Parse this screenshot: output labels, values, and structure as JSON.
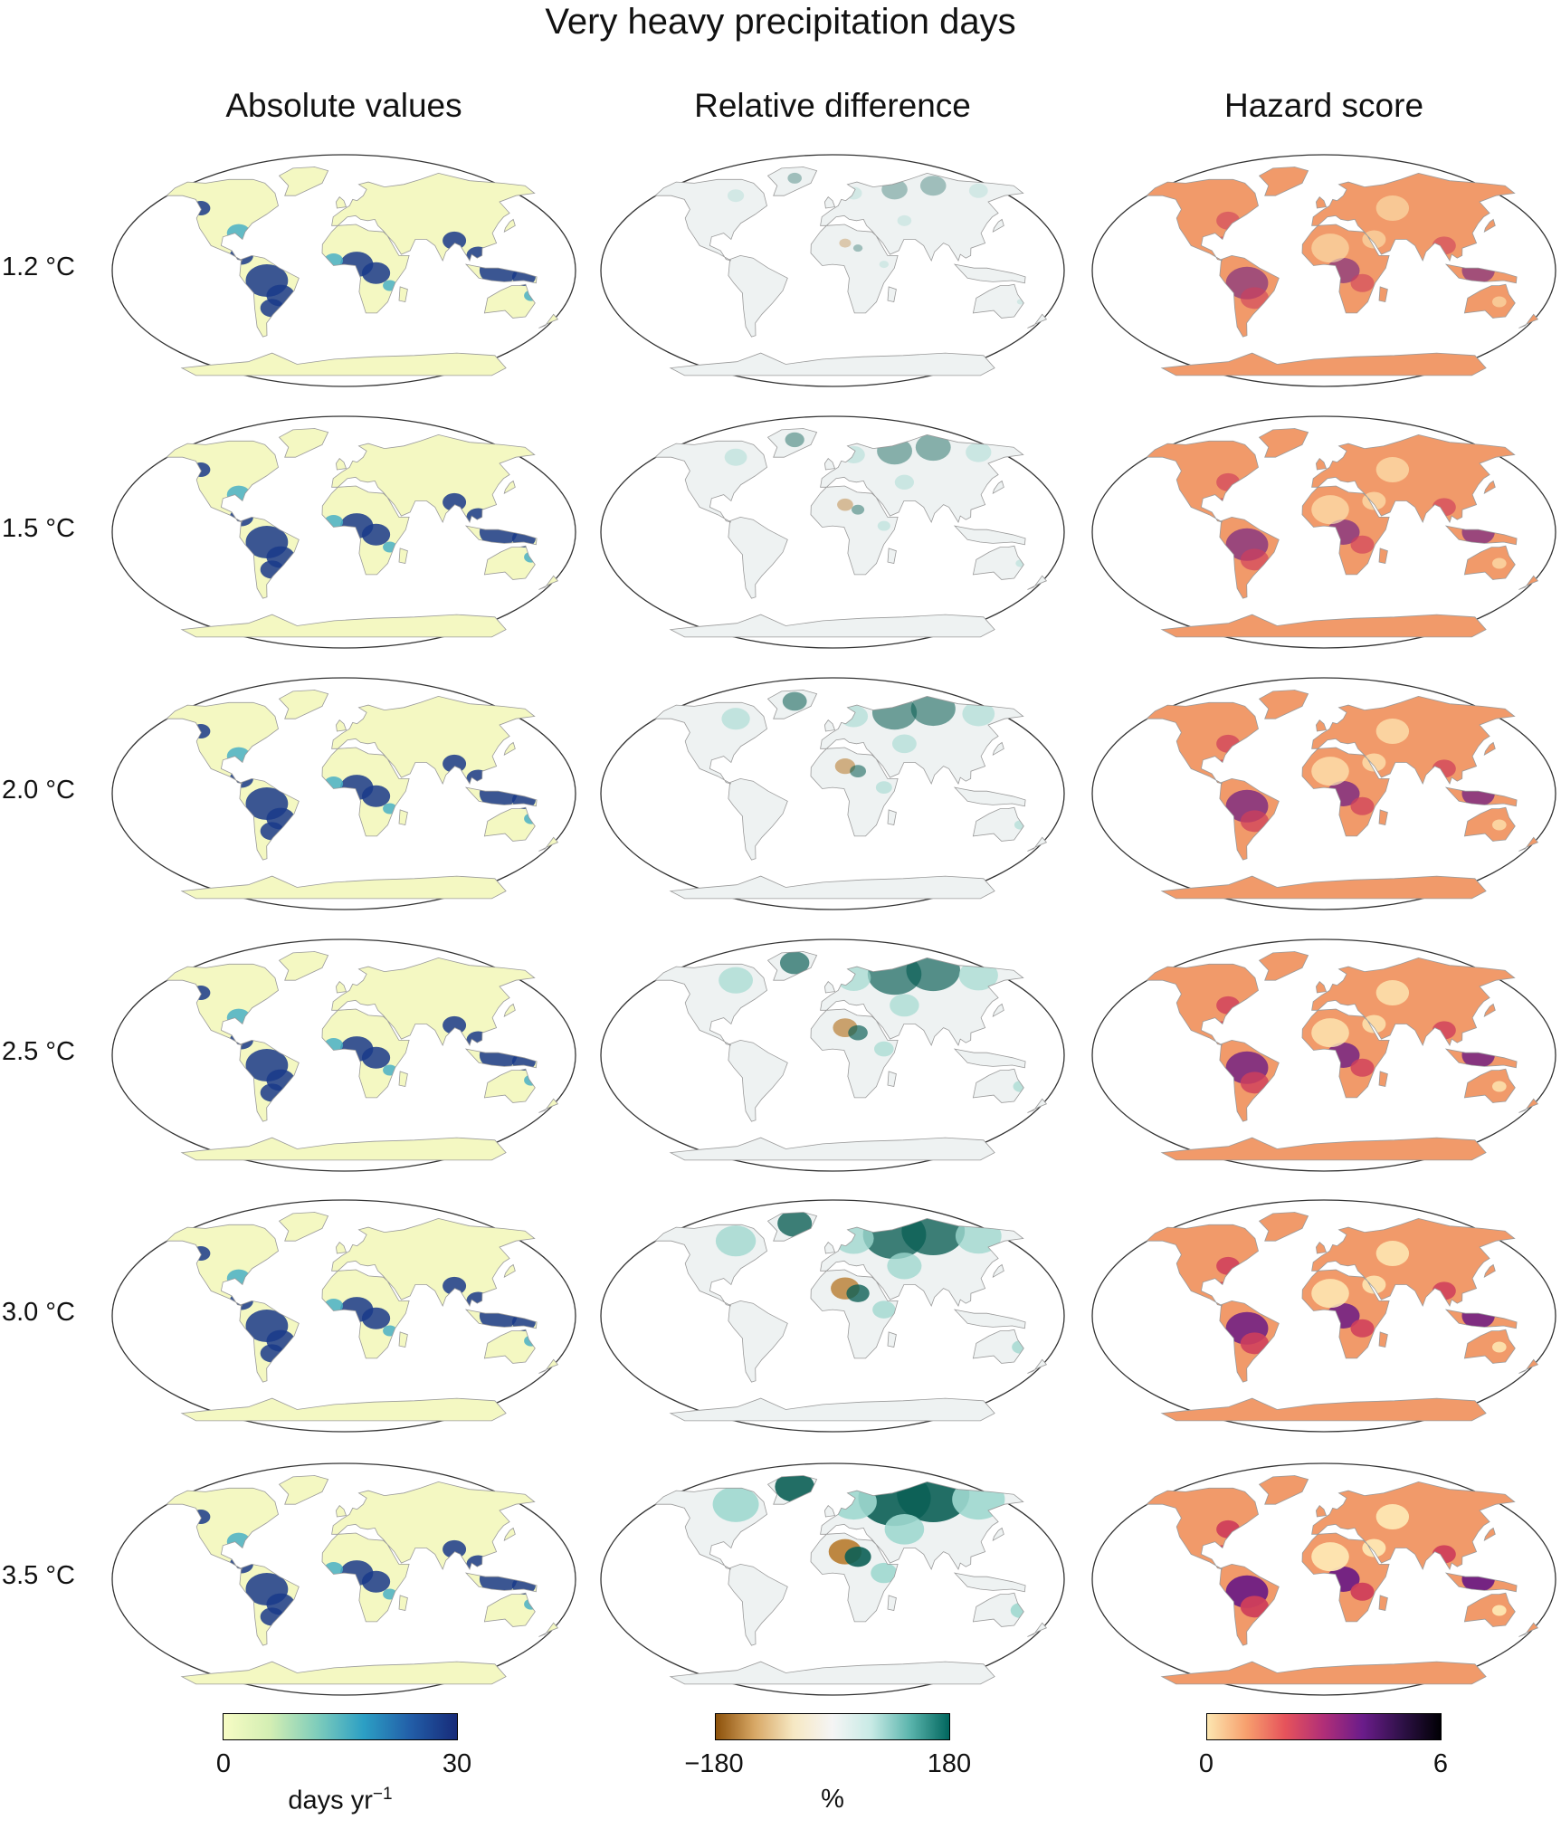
{
  "title": "Very heavy precipitation days",
  "columns": [
    {
      "key": "abs",
      "label": "Absolute values"
    },
    {
      "key": "rel",
      "label": "Relative difference"
    },
    {
      "key": "haz",
      "label": "Hazard score"
    }
  ],
  "rows": [
    {
      "label": "1.2 °C",
      "level": 0.0
    },
    {
      "label": "1.5 °C",
      "level": 0.2
    },
    {
      "label": "2.0 °C",
      "level": 0.4
    },
    {
      "label": "2.5 °C",
      "level": 0.6
    },
    {
      "label": "3.0 °C",
      "level": 0.8
    },
    {
      "label": "3.5 °C",
      "level": 1.0
    }
  ],
  "colorbars": [
    {
      "min": "0",
      "max": "30",
      "unit": "days yr",
      "unit_sup": "−1",
      "colors": [
        "#f7fcc4",
        "#d3eeb3",
        "#7fcdbb",
        "#2c9fc4",
        "#225ea8",
        "#172b79"
      ]
    },
    {
      "min": "−180",
      "max": "180",
      "unit": "%",
      "unit_sup": "",
      "colors": [
        "#8c510a",
        "#d8a866",
        "#f6e8c3",
        "#f5f5f5",
        "#c7eae5",
        "#5ab4ac",
        "#01665e"
      ]
    },
    {
      "min": "0",
      "max": "6",
      "unit": "",
      "unit_sup": "",
      "colors": [
        "#fce6b0",
        "#f7a06e",
        "#e6535b",
        "#b02e78",
        "#6a1c8a",
        "#2f1148",
        "#000004"
      ]
    }
  ],
  "map_styles": {
    "abs": {
      "base": "#f4f8c2",
      "mid": "#49b0c6",
      "high": "#1a3a8a"
    },
    "rel": {
      "base": "#eef2f2",
      "mid": "#9fd8cf",
      "high": "#0b5f55",
      "neg": "#b77b2e"
    },
    "haz": {
      "base": "#f19a6a",
      "mid": "#cf3f5b",
      "high": "#6e1e84",
      "light": "#fde7b3"
    }
  }
}
